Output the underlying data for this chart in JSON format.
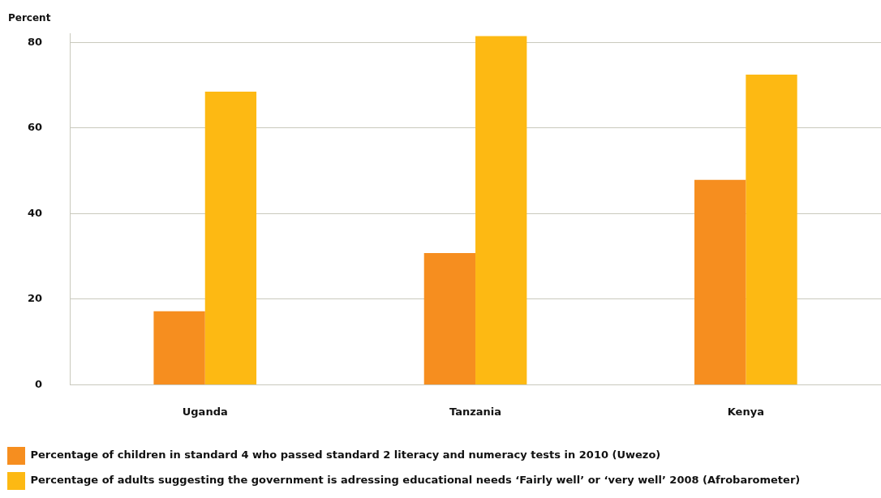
{
  "chart_data": {
    "type": "bar",
    "ylabel": "Percent",
    "categories": [
      "Uganda",
      "Tanzania",
      "Kenya"
    ],
    "series": [
      {
        "name": "Percentage of children in standard 4 who passed standard 2 literacy and numeracy tests in 2010 (Uwezo)",
        "color": "#f68e1f",
        "values": [
          17.2,
          30.8,
          47.9
        ]
      },
      {
        "name": "Percentage of adults suggesting the government is adressing educational needs ‘Fairly well’ or ‘very well’ 2008 (Afrobarometer)",
        "color": "#fdb913",
        "values": [
          68.5,
          81.5,
          72.5
        ]
      }
    ],
    "ylim": [
      0,
      82
    ],
    "yticks": [
      0,
      20,
      40,
      60,
      80
    ],
    "grid": "y",
    "legend": "bottom"
  }
}
